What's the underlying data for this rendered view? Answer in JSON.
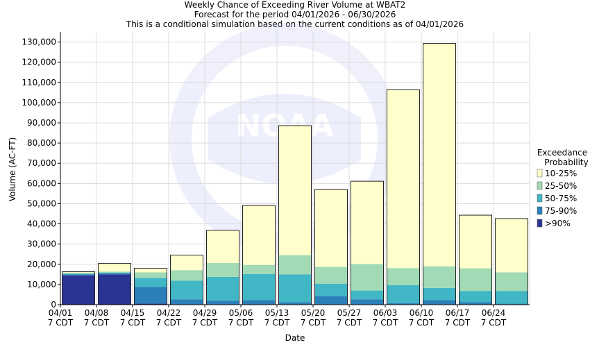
{
  "chart_data": {
    "type": "bar",
    "title_lines": [
      "Weekly Chance of Exceeding River Volume at WBAT2",
      "Forecast for the period 04/01/2026 - 06/30/2026",
      "This is a conditional simulation based on the current conditions as of 04/01/2026"
    ],
    "xlabel": "Date",
    "ylabel": "Volume (AC-FT)",
    "ylim": [
      0,
      135000
    ],
    "y_ticks": [
      0,
      10000,
      20000,
      30000,
      40000,
      50000,
      60000,
      70000,
      80000,
      90000,
      100000,
      110000,
      120000,
      130000
    ],
    "y_tick_labels": [
      "0",
      "10,000",
      "20,000",
      "30,000",
      "40,000",
      "50,000",
      "60,000",
      "70,000",
      "80,000",
      "90,000",
      "100,000",
      "110,000",
      "120,000",
      "130,000"
    ],
    "categories": [
      "04/01",
      "04/08",
      "04/15",
      "04/22",
      "04/29",
      "05/06",
      "05/13",
      "05/20",
      "05/27",
      "06/03",
      "06/10",
      "06/17",
      "06/24"
    ],
    "category_sublabel": "7 CDT",
    "legend_title": [
      "Exceedance",
      "Probability"
    ],
    "legend_position": "right",
    "grid": true,
    "watermark": "NOAA",
    "series": [
      {
        "name": ">90%",
        "color": "#2a3593",
        "values": [
          14500,
          15000,
          500,
          200,
          200,
          200,
          200,
          200,
          200,
          200,
          200,
          200,
          200
        ]
      },
      {
        "name": "75-90%",
        "color": "#2c7fb8",
        "values": [
          500,
          500,
          8300,
          2400,
          1800,
          2100,
          1100,
          4000,
          2400,
          600,
          2100,
          1000,
          300
        ]
      },
      {
        "name": "50-75%",
        "color": "#41b6c4",
        "values": [
          300,
          400,
          4500,
          9300,
          11800,
          12900,
          13700,
          6200,
          4400,
          8900,
          6000,
          5600,
          6200
        ]
      },
      {
        "name": "25-50%",
        "color": "#a1dab4",
        "values": [
          500,
          500,
          2700,
          5200,
          6800,
          4500,
          9500,
          8300,
          13100,
          8400,
          10700,
          11200,
          9300
        ]
      },
      {
        "name": "10-25%",
        "color": "#ffffcc",
        "values": [
          500,
          4000,
          2000,
          7400,
          16200,
          29400,
          64100,
          38300,
          41000,
          88300,
          110300,
          26300,
          26600
        ]
      }
    ]
  }
}
